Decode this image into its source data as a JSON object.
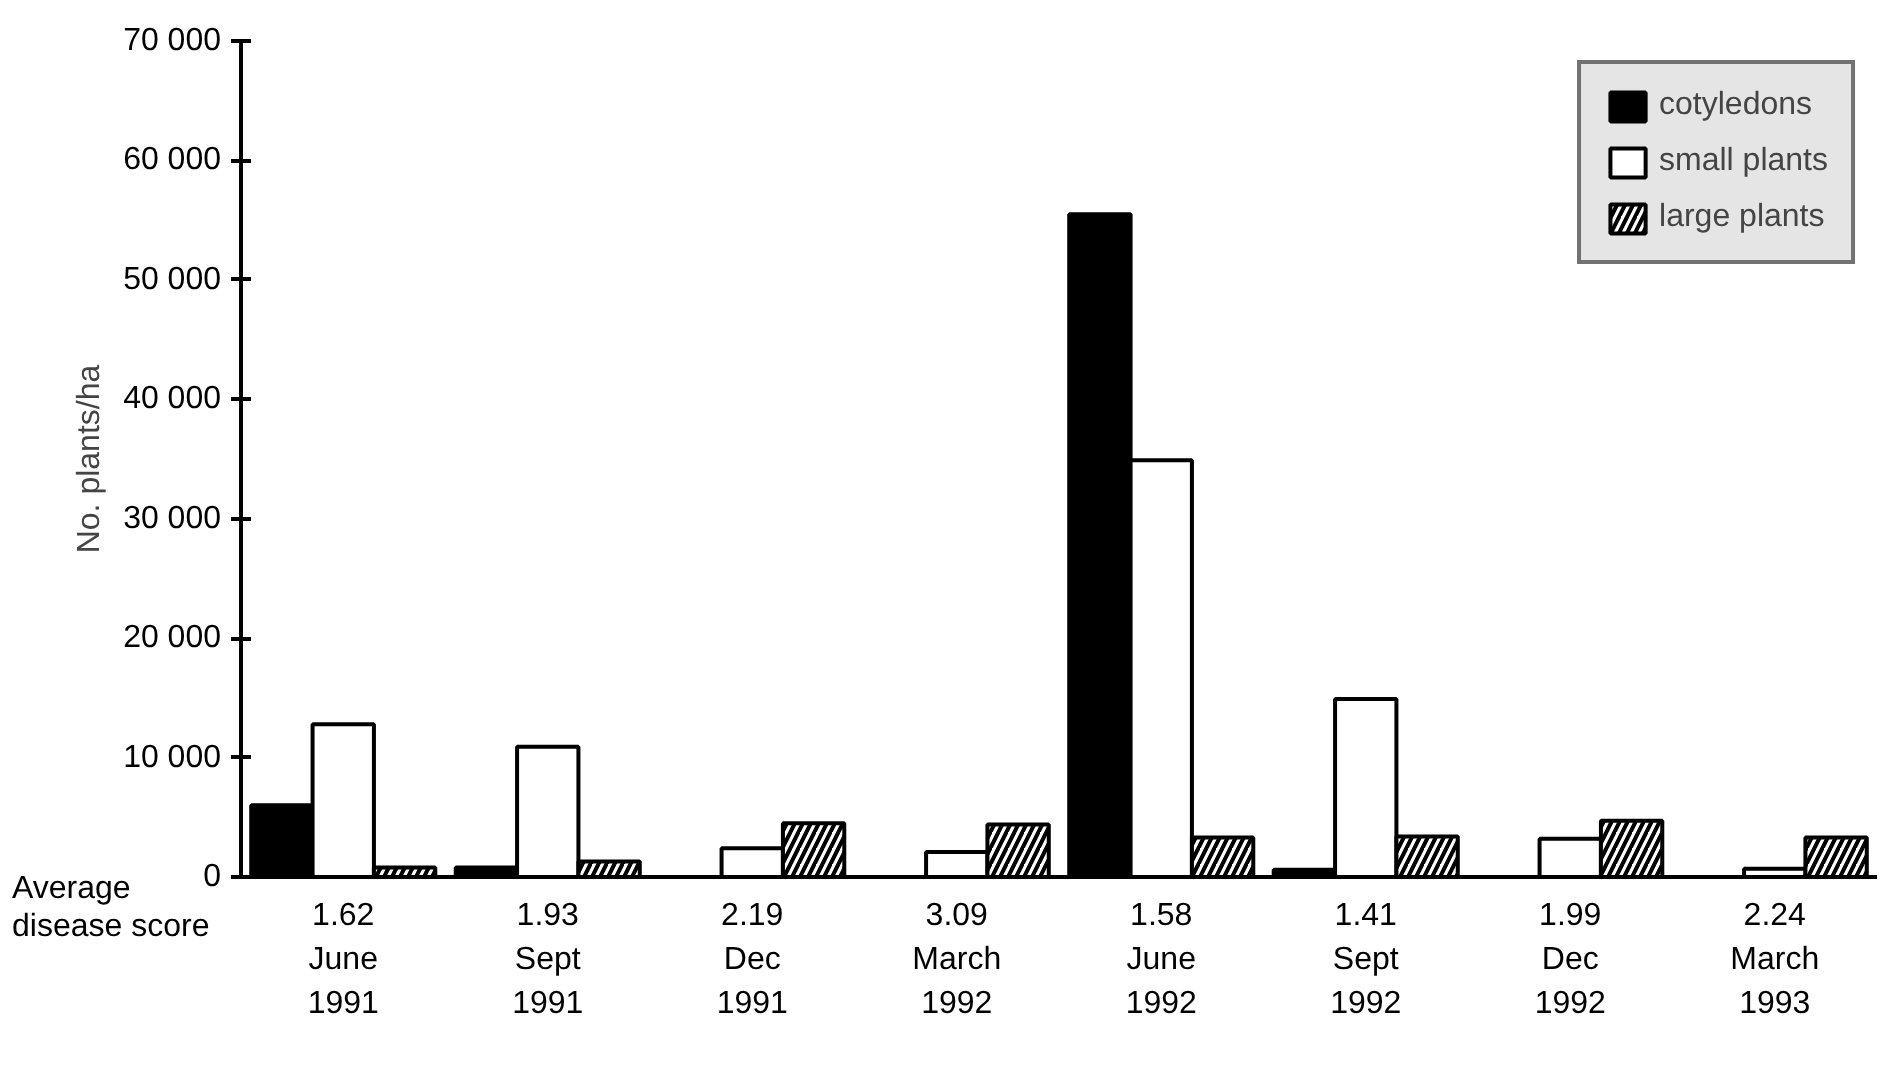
{
  "chart_data": {
    "type": "bar",
    "ylabel": "No. plants/ha",
    "categories": [
      "1.62\nJune\n1991",
      "1.93\nSept\n1991",
      "2.19\nDec\n1991",
      "3.09\nMarch\n1992",
      "1.58\nJune\n1992",
      "1.41\nSept\n1992",
      "1.99\nDec\n1992",
      "2.24\nMarch\n1993"
    ],
    "series": [
      {
        "name": "cotyledons",
        "color": "#000000",
        "values": [
          6000,
          800,
          0,
          0,
          55500,
          600,
          0,
          0
        ]
      },
      {
        "name": "small plants",
        "color": "#ffffff",
        "values": [
          12800,
          10900,
          2400,
          2100,
          34900,
          14900,
          3200,
          700
        ]
      },
      {
        "name": "large plants",
        "color": "#ffffff",
        "values": [
          800,
          1300,
          4500,
          4400,
          3300,
          3400,
          4700,
          3300
        ]
      }
    ],
    "ylim": [
      0,
      70000
    ],
    "yticks": [
      {
        "value": 0,
        "label": "0"
      },
      {
        "value": 10000,
        "label": "10 000"
      },
      {
        "value": 20000,
        "label": "20 000"
      },
      {
        "value": 30000,
        "label": "30 000"
      },
      {
        "value": 40000,
        "label": "40 000"
      },
      {
        "value": 50000,
        "label": "50 000"
      },
      {
        "value": 60000,
        "label": "60 000"
      },
      {
        "value": 70000,
        "label": "70 000"
      }
    ],
    "annotations": [
      "Average\ndisease score"
    ],
    "grid": false,
    "legend": "top right"
  }
}
